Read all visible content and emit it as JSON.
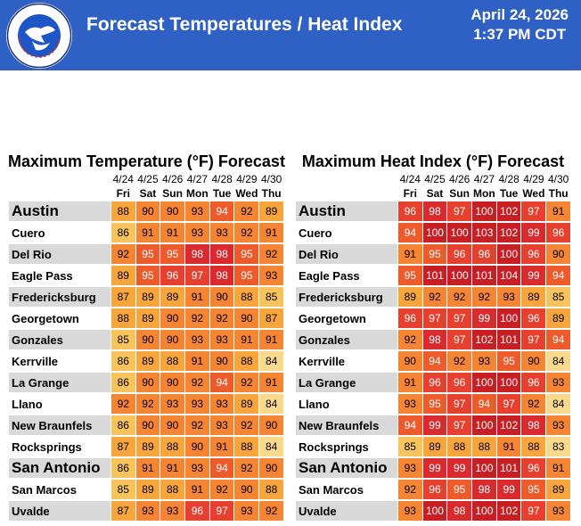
{
  "header": {
    "title": "Forecast Temperatures / Heat Index",
    "date": "April 24, 2026",
    "time": "1:37 PM CDT",
    "logo_text": "NATIONAL WEATHER SERVICE",
    "colors": {
      "bar": "#2f60c4"
    }
  },
  "days": [
    {
      "date": "4/24",
      "dow": "Fri"
    },
    {
      "date": "4/25",
      "dow": "Sat"
    },
    {
      "date": "4/26",
      "dow": "Sun"
    },
    {
      "date": "4/27",
      "dow": "Mon"
    },
    {
      "date": "4/28",
      "dow": "Tue"
    },
    {
      "date": "4/29",
      "dow": "Wed"
    },
    {
      "date": "4/30",
      "dow": "Thu"
    }
  ],
  "cities": [
    "Austin",
    "Cuero",
    "Del Rio",
    "Eagle Pass",
    "Fredericksburg",
    "Georgetown",
    "Gonzales",
    "Kerrville",
    "La Grange",
    "Llano",
    "New Braunfels",
    "Rocksprings",
    "San Antonio",
    "San Marcos",
    "Uvalde"
  ],
  "max_temp": {
    "title": "Maximum Temperature (°F) Forecast",
    "values": [
      [
        88,
        90,
        90,
        93,
        94,
        92,
        89
      ],
      [
        86,
        91,
        91,
        93,
        93,
        92,
        91
      ],
      [
        92,
        95,
        95,
        98,
        98,
        95,
        92
      ],
      [
        89,
        95,
        96,
        97,
        98,
        95,
        93
      ],
      [
        87,
        89,
        89,
        91,
        90,
        88,
        85
      ],
      [
        88,
        89,
        90,
        92,
        92,
        90,
        87
      ],
      [
        85,
        90,
        90,
        93,
        93,
        91,
        91
      ],
      [
        86,
        89,
        88,
        91,
        90,
        88,
        84
      ],
      [
        86,
        90,
        90,
        92,
        94,
        92,
        91
      ],
      [
        92,
        92,
        93,
        93,
        93,
        89,
        84
      ],
      [
        86,
        90,
        90,
        92,
        93,
        92,
        90
      ],
      [
        87,
        89,
        88,
        90,
        91,
        88,
        84
      ],
      [
        86,
        91,
        91,
        93,
        94,
        92,
        90
      ],
      [
        85,
        89,
        88,
        91,
        92,
        90,
        88
      ],
      [
        87,
        93,
        93,
        96,
        97,
        93,
        92
      ]
    ]
  },
  "heat_index": {
    "title": "Maximum Heat Index (°F) Forecast",
    "values": [
      [
        96,
        98,
        97,
        100,
        102,
        97,
        91
      ],
      [
        94,
        100,
        100,
        103,
        102,
        99,
        96
      ],
      [
        91,
        95,
        96,
        96,
        100,
        96,
        90
      ],
      [
        95,
        101,
        100,
        101,
        104,
        99,
        94
      ],
      [
        89,
        92,
        92,
        92,
        93,
        89,
        85
      ],
      [
        96,
        97,
        97,
        99,
        100,
        96,
        89
      ],
      [
        92,
        98,
        97,
        102,
        101,
        97,
        94
      ],
      [
        90,
        94,
        92,
        93,
        95,
        90,
        84
      ],
      [
        91,
        96,
        96,
        100,
        100,
        96,
        93
      ],
      [
        93,
        95,
        97,
        94,
        97,
        92,
        84
      ],
      [
        94,
        99,
        97,
        100,
        102,
        98,
        93
      ],
      [
        85,
        89,
        88,
        88,
        91,
        88,
        83
      ],
      [
        93,
        99,
        99,
        100,
        101,
        96,
        91
      ],
      [
        92,
        96,
        95,
        98,
        99,
        95,
        89
      ],
      [
        93,
        100,
        98,
        100,
        102,
        97,
        93
      ]
    ]
  },
  "colors": {
    "le84": "#fbd98a",
    "85_86": "#f9c35b",
    "87_89": "#f8a53b",
    "90_93": "#f58433",
    "94_95": "#ef5a2b",
    "96_97": "#e7402e",
    "98_99": "#da2a2d",
    "ge100": "#c81e24"
  }
}
